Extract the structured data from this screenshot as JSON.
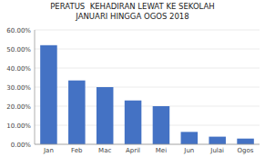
{
  "chart_data": {
    "type": "bar",
    "title": "PERATUS  KEHADIRAN LEWAT KE SEKOLAH\nJANUARI HINGGA OGOS 2018",
    "categories": [
      "Jan",
      "Feb",
      "Mac",
      "April",
      "Mei",
      "Jun",
      "Julai",
      "Ogos"
    ],
    "values": [
      52.0,
      33.5,
      30.0,
      23.0,
      20.0,
      6.5,
      4.0,
      3.0
    ],
    "color": "#4472C4",
    "ylim": [
      0,
      60
    ],
    "yticks": [
      {
        "value": 0,
        "label": "0.00%"
      },
      {
        "value": 10,
        "label": "10.00%"
      },
      {
        "value": 20,
        "label": "20.00%"
      },
      {
        "value": 30,
        "label": "30.00%"
      },
      {
        "value": 40,
        "label": "40.00%"
      },
      {
        "value": 50,
        "label": "50.00%"
      },
      {
        "value": 60,
        "label": "60.00%"
      }
    ],
    "grid": true
  }
}
